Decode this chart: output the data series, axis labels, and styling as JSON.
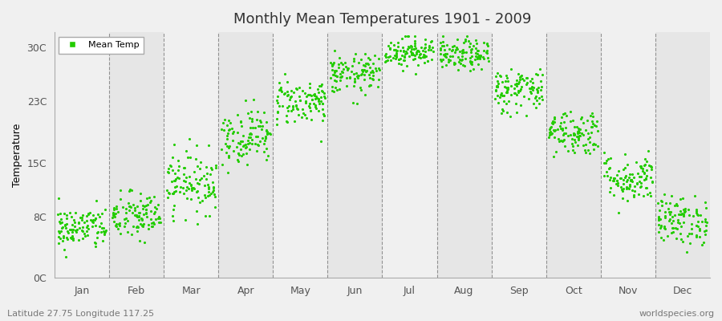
{
  "title": "Monthly Mean Temperatures 1901 - 2009",
  "ylabel": "Temperature",
  "bottom_left": "Latitude 27.75 Longitude 117.25",
  "bottom_right": "worldspecies.org",
  "legend_label": "Mean Temp",
  "marker_color": "#22cc00",
  "fig_bg_color": "#f0f0f0",
  "plot_bg_color": "#ffffff",
  "band_color_even": "#f0f0f0",
  "band_color_odd": "#e6e6e6",
  "ylim": [
    0,
    32
  ],
  "yticks": [
    0,
    8,
    15,
    23,
    30
  ],
  "ytick_labels": [
    "0C",
    "8C",
    "15C",
    "23C",
    "30C"
  ],
  "months": [
    "Jan",
    "Feb",
    "Mar",
    "Apr",
    "May",
    "Jun",
    "Jul",
    "Aug",
    "Sep",
    "Oct",
    "Nov",
    "Dec"
  ],
  "monthly_means": [
    6.5,
    8.0,
    12.5,
    18.5,
    23.0,
    26.5,
    29.5,
    29.0,
    24.5,
    19.0,
    13.0,
    7.5
  ],
  "monthly_stds": [
    1.4,
    1.6,
    2.0,
    1.8,
    1.5,
    1.3,
    1.0,
    1.0,
    1.5,
    1.5,
    1.6,
    1.6
  ],
  "n_years": 109,
  "seed": 42
}
